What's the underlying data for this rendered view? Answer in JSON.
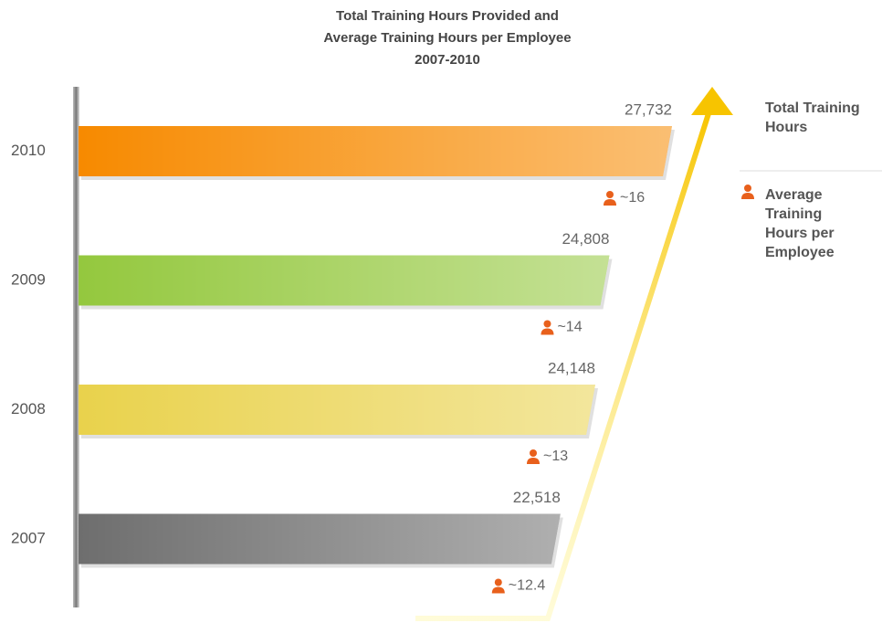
{
  "chart_data": {
    "type": "bar",
    "orientation": "horizontal",
    "title": [
      "Total Training Hours Provided and",
      "Average Training Hours per Employee",
      "2007-2010"
    ],
    "categories": [
      "2010",
      "2009",
      "2008",
      "2007"
    ],
    "series": [
      {
        "name": "Total Training Hours",
        "values": [
          27732,
          24808,
          24148,
          22518
        ],
        "value_labels": [
          "27,732",
          "24,808",
          "24,148",
          "22,518"
        ],
        "colors": [
          "#f78a00",
          "#94c83e",
          "#e9d24c",
          "#6e6e6e"
        ]
      },
      {
        "name": "Average Training Hours per Employee",
        "color": "#e8601c",
        "values": [
          16,
          14,
          13,
          12.4
        ],
        "value_labels": [
          "~16",
          "~14",
          "~13",
          "~12.4"
        ]
      }
    ]
  }
}
